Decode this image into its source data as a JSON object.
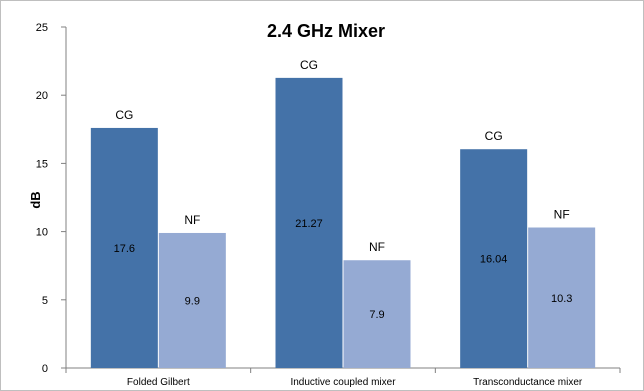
{
  "chart_data": {
    "type": "bar",
    "title": "2.4 GHz Mixer",
    "xlabel": "",
    "ylabel": "dB",
    "ylim": [
      0,
      25
    ],
    "yticks": [
      0,
      5,
      10,
      15,
      20,
      25
    ],
    "grid": false,
    "legend": "none",
    "categories": [
      "Folded Gilbert",
      "Inductive coupled mixer",
      "Transconductance mixer"
    ],
    "series": [
      {
        "name": "CG",
        "color": "#4472a8",
        "values": [
          17.6,
          21.27,
          16.04
        ],
        "data_labels": [
          "17.6",
          "21.27",
          "16.04"
        ]
      },
      {
        "name": "NF",
        "color": "#95aad3",
        "values": [
          9.9,
          7.9,
          10.3
        ],
        "data_labels": [
          "9.9",
          "7.9",
          "10.3"
        ]
      }
    ]
  }
}
